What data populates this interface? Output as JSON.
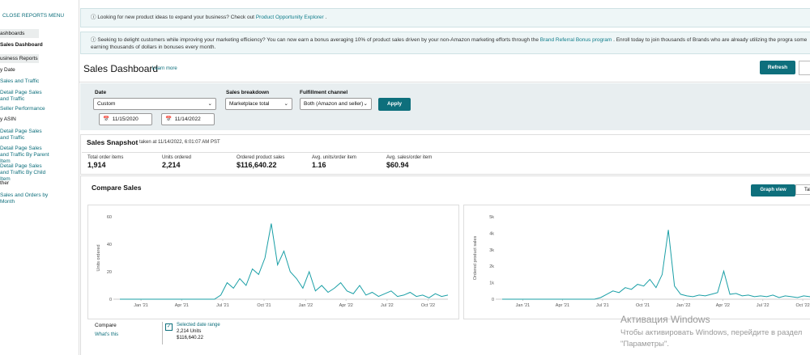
{
  "sidebar": {
    "close": "CLOSE REPORTS MENU",
    "items": [
      "ashboards",
      "Sales Dashboard",
      "usiness Reports",
      "y Date",
      "Sales and Traffic",
      "Detail Page Sales and Traffic",
      "Seller Performance",
      "y ASIN",
      "Detail Page Sales and Traffic",
      "Detail Page Sales and Traffic By Parent Item",
      "Detail Page Sales and Traffic By Child Item",
      "ther",
      "Sales and Orders by Month"
    ]
  },
  "banners": [
    {
      "text": "Looking for new product ideas to expand your business? Check out",
      "link": "Product Opportunity Explorer",
      "end": "."
    },
    {
      "text": "Seeking to delight customers while improving your marketing efficiency? You can now earn a bonus averaging 10% of product sales driven by your non-Amazon marketing efforts through the",
      "link": "Brand Referral Bonus program",
      "end": ". Enroll today to join thousands of Brands who are already utilizing the progra some earning thousands of dollars in bonuses every month."
    }
  ],
  "header": {
    "title": "Sales Dashboard",
    "learn_more": "Learn more",
    "refresh": "Refresh"
  },
  "filters": {
    "date_label": "Date",
    "date_value": "Custom",
    "from": "11/15/2020",
    "to": "11/14/2022",
    "breakdown_label": "Sales breakdown",
    "breakdown_value": "Marketplace total",
    "fulfillment_label": "Fulfillment channel",
    "fulfillment_value": "Both (Amazon and seller)",
    "apply": "Apply"
  },
  "snapshot": {
    "title": "Sales Snapshot",
    "taken": "taken at 11/14/2022, 6:01:07 AM PST",
    "metrics": [
      {
        "label": "Total order items",
        "value": "1,914"
      },
      {
        "label": "Units ordered",
        "value": "2,214"
      },
      {
        "label": "Ordered product sales",
        "value": "$116,640.22"
      },
      {
        "label": "Avg. units/order item",
        "value": "1.16"
      },
      {
        "label": "Avg. sales/order item",
        "value": "$60.94"
      }
    ]
  },
  "compare": {
    "title": "Compare Sales",
    "graph_view": "Graph view",
    "table_view": "Tal",
    "compare_label": "Compare",
    "whats_this": "What's this",
    "selected": "Selected date range",
    "units": "2,214 Units",
    "sales": "$116,640.22"
  },
  "chart_data": [
    {
      "type": "line",
      "ylabel": "Units ordered",
      "color": "#1a9fa6",
      "x": [
        0,
        2,
        4,
        6,
        8,
        10,
        12,
        14,
        16,
        18,
        20,
        22,
        24,
        26,
        28,
        30,
        32,
        34,
        36,
        38,
        40,
        42,
        44,
        46,
        48,
        50,
        52,
        54,
        56,
        58,
        60,
        62,
        64,
        66,
        68,
        70,
        72,
        74,
        76,
        78,
        80,
        82,
        84,
        86,
        88,
        90,
        92,
        94,
        96,
        98,
        100,
        102,
        104
      ],
      "values": [
        0,
        0,
        0,
        0,
        0,
        0,
        0,
        0,
        0,
        0,
        0,
        0,
        0,
        0,
        0,
        0,
        3,
        12,
        8,
        15,
        10,
        22,
        18,
        30,
        55,
        25,
        35,
        20,
        15,
        8,
        20,
        6,
        10,
        5,
        8,
        12,
        6,
        4,
        10,
        3,
        5,
        2,
        4,
        6,
        2,
        3,
        5,
        2,
        3,
        1,
        4,
        2,
        3
      ],
      "xlim": [
        0,
        104
      ],
      "xticks": [
        {
          "value": 6.7,
          "label": "Jan '21"
        },
        {
          "value": 19.6,
          "label": "Apr '21"
        },
        {
          "value": 32.6,
          "label": "Jul '21"
        },
        {
          "value": 45.7,
          "label": "Oct '21"
        },
        {
          "value": 58.9,
          "label": "Jan '22"
        },
        {
          "value": 71.7,
          "label": "Apr '22"
        },
        {
          "value": 84.7,
          "label": "Jul '22"
        },
        {
          "value": 97.7,
          "label": "Oct '22"
        }
      ],
      "ylim": [
        0,
        60
      ],
      "yticks": [
        0,
        20,
        40,
        60
      ],
      "grid": false
    },
    {
      "type": "line",
      "ylabel": "Ordered product sales",
      "color": "#1a9fa6",
      "x": [
        0,
        2,
        4,
        6,
        8,
        10,
        12,
        14,
        16,
        18,
        20,
        22,
        24,
        26,
        28,
        30,
        32,
        34,
        36,
        38,
        40,
        42,
        44,
        46,
        48,
        50,
        52,
        54,
        56,
        58,
        60,
        62,
        64,
        66,
        68,
        70,
        72,
        74,
        76,
        78,
        80,
        82,
        84,
        86,
        88,
        90,
        92,
        94,
        96,
        98,
        100,
        102,
        104
      ],
      "values": [
        0,
        0,
        0,
        0,
        0,
        0,
        0,
        0,
        0,
        0,
        0,
        0,
        0,
        0,
        0,
        0,
        100,
        300,
        500,
        400,
        700,
        600,
        900,
        800,
        1200,
        700,
        1500,
        4200,
        800,
        300,
        200,
        150,
        250,
        200,
        300,
        400,
        1700,
        300,
        350,
        200,
        250,
        150,
        200,
        150,
        250,
        100,
        200,
        150,
        100,
        200,
        150,
        100,
        150
      ],
      "xlim": [
        0,
        104
      ],
      "xticks": [
        {
          "value": 6.7,
          "label": "Jan '21"
        },
        {
          "value": 19.6,
          "label": "Apr '21"
        },
        {
          "value": 32.6,
          "label": "Jul '21"
        },
        {
          "value": 45.7,
          "label": "Oct '21"
        },
        {
          "value": 58.9,
          "label": "Jan '22"
        },
        {
          "value": 71.7,
          "label": "Apr '22"
        },
        {
          "value": 84.7,
          "label": "Jul '22"
        },
        {
          "value": 97.7,
          "label": "Oct '22"
        }
      ],
      "ylim": [
        0,
        5000
      ],
      "yticks": [
        0,
        {
          "value": 1000,
          "label": "1k"
        },
        {
          "value": 2000,
          "label": "2k"
        },
        {
          "value": 3000,
          "label": "3k"
        },
        {
          "value": 4000,
          "label": "4k"
        },
        {
          "value": 5000,
          "label": "5k"
        }
      ],
      "grid": false
    }
  ],
  "watermark": {
    "title": "Активация Windows",
    "line1": "Чтобы активировать Windows, перейдите в раздел",
    "line2": "\"Параметры\"."
  }
}
